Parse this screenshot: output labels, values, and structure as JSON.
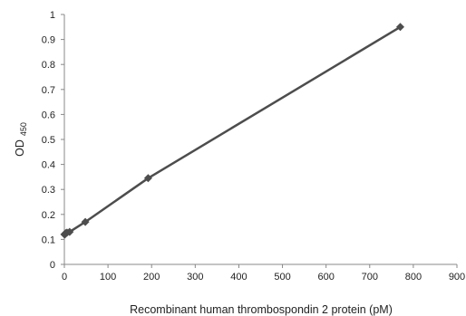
{
  "chart_data": {
    "type": "line",
    "title": "",
    "xlabel": "Recombinant human thrombospondin  2 protein (pM)",
    "ylabel": {
      "main": "OD",
      "subscript": "450"
    },
    "xlim": [
      0,
      900
    ],
    "ylim": [
      0,
      1
    ],
    "x_ticks": [
      "0",
      "100",
      "200",
      "300",
      "400",
      "500",
      "600",
      "700",
      "800",
      "900"
    ],
    "y_ticks": [
      "0",
      "0.1",
      "0.2",
      "0.3",
      "0.4",
      "0.5",
      "0.6",
      "0.7",
      "0.8",
      "0.9",
      "1"
    ],
    "grid": false,
    "legend": "none",
    "series": [
      {
        "marker": "diamond",
        "color": "#4d4d4d",
        "x": [
          0,
          1.5,
          3,
          6,
          12,
          48,
          192,
          770
        ],
        "y": [
          0.12,
          0.12,
          0.125,
          0.127,
          0.13,
          0.17,
          0.345,
          0.95
        ]
      }
    ]
  }
}
